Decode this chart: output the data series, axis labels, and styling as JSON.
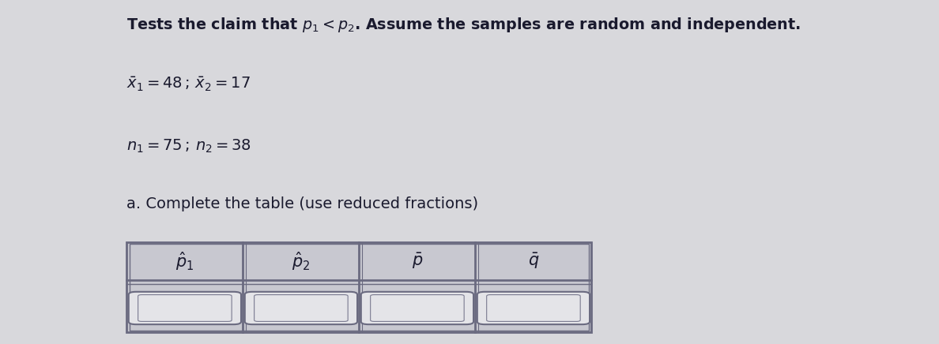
{
  "background_color": "#d8d8dc",
  "title_line": "Tests the claim that $p_1 < p_2$. Assume the samples are random and independent.",
  "line2": "$\\bar{x}_1 = 48\\,;\\,\\bar{x}_2 = 17$",
  "line3": "$n_1 = 75\\,;\\,n_2 = 38$",
  "line4": "a. Complete the table (use reduced fractions)",
  "col_headers": [
    "$\\hat{p}_1$",
    "$\\hat{p}_2$",
    "$\\bar{p}$",
    "$\\bar{q}$"
  ],
  "text_color": "#1a1a2e",
  "table_outer_bg": "#c8c8d0",
  "table_header_bg": "#c8c8d0",
  "cell_bg": "#dcdce0",
  "inner_box_bg": "#e4e4e8",
  "outer_border_color": "#6a6a80",
  "inner_border_color": "#7a7a90",
  "title_fontsize": 13.8,
  "body_fontsize": 14.0,
  "header_fontsize": 15.0
}
